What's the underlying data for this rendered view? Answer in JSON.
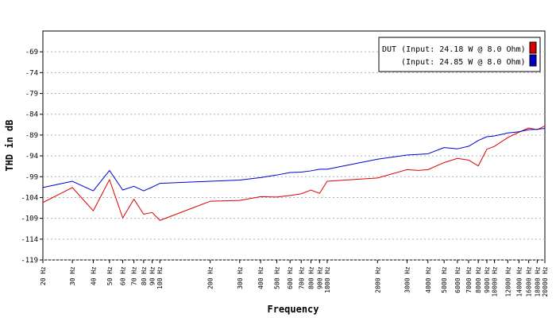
{
  "chart_data": {
    "type": "line",
    "title": "",
    "xlabel": "Frequency",
    "ylabel": "THD in dB",
    "x_scale": "log",
    "xlim": [
      20,
      20000
    ],
    "ylim": [
      -119,
      -64
    ],
    "y_ticks": [
      -69,
      -74,
      -79,
      -84,
      -89,
      -94,
      -99,
      -104,
      -109,
      -114,
      -119
    ],
    "x_ticks": [
      {
        "value": 20,
        "label": "20 Hz"
      },
      {
        "value": 30,
        "label": "30 Hz"
      },
      {
        "value": 40,
        "label": "40 Hz"
      },
      {
        "value": 50,
        "label": "50 Hz"
      },
      {
        "value": 60,
        "label": "60 Hz"
      },
      {
        "value": 70,
        "label": "70 Hz"
      },
      {
        "value": 80,
        "label": "80 Hz"
      },
      {
        "value": 90,
        "label": "90 Hz"
      },
      {
        "value": 100,
        "label": "100 Hz"
      },
      {
        "value": 200,
        "label": "200 Hz"
      },
      {
        "value": 300,
        "label": "300 Hz"
      },
      {
        "value": 400,
        "label": "400 Hz"
      },
      {
        "value": 500,
        "label": "500 Hz"
      },
      {
        "value": 600,
        "label": "600 Hz"
      },
      {
        "value": 700,
        "label": "700 Hz"
      },
      {
        "value": 800,
        "label": "800 Hz"
      },
      {
        "value": 900,
        "label": "900 Hz"
      },
      {
        "value": 1000,
        "label": "1000 Hz"
      },
      {
        "value": 2000,
        "label": "2000 Hz"
      },
      {
        "value": 3000,
        "label": "3000 Hz"
      },
      {
        "value": 4000,
        "label": "4000 Hz"
      },
      {
        "value": 5000,
        "label": "5000 Hz"
      },
      {
        "value": 6000,
        "label": "6000 Hz"
      },
      {
        "value": 7000,
        "label": "7000 Hz"
      },
      {
        "value": 8000,
        "label": "8000 Hz"
      },
      {
        "value": 9000,
        "label": "9000 Hz"
      },
      {
        "value": 10000,
        "label": "10000 Hz"
      },
      {
        "value": 12000,
        "label": "12000 Hz"
      },
      {
        "value": 14000,
        "label": "14000 Hz"
      },
      {
        "value": 16000,
        "label": "16000 Hz"
      },
      {
        "value": 18000,
        "label": "18000 Hz"
      },
      {
        "value": 20000,
        "label": "20000 Hz"
      }
    ],
    "grid": true,
    "legend_position": "top-right",
    "series": [
      {
        "name": "DUT (Input: 24.18 W @ 8.0 Ohm)",
        "color": "#dd0000",
        "points": [
          [
            20,
            -105.2
          ],
          [
            30,
            -101.6
          ],
          [
            40,
            -107.2
          ],
          [
            50,
            -99.7
          ],
          [
            60,
            -108.9
          ],
          [
            70,
            -104.4
          ],
          [
            80,
            -108.0
          ],
          [
            90,
            -107.6
          ],
          [
            100,
            -109.5
          ],
          [
            200,
            -104.9
          ],
          [
            300,
            -104.7
          ],
          [
            400,
            -103.8
          ],
          [
            500,
            -103.9
          ],
          [
            600,
            -103.5
          ],
          [
            700,
            -103.1
          ],
          [
            800,
            -102.2
          ],
          [
            900,
            -103.0
          ],
          [
            1000,
            -100.1
          ],
          [
            2000,
            -99.3
          ],
          [
            3000,
            -97.3
          ],
          [
            3500,
            -97.5
          ],
          [
            4000,
            -97.3
          ],
          [
            5000,
            -95.6
          ],
          [
            6000,
            -94.6
          ],
          [
            7000,
            -95.0
          ],
          [
            8000,
            -96.4
          ],
          [
            9000,
            -92.4
          ],
          [
            10000,
            -91.7
          ],
          [
            12000,
            -89.6
          ],
          [
            14000,
            -88.3
          ],
          [
            16000,
            -87.3
          ],
          [
            18000,
            -87.7
          ],
          [
            20000,
            -86.8
          ]
        ]
      },
      {
        "name": "(Input: 24.85 W @ 8.0 Ohm)",
        "color": "#0000cc",
        "points": [
          [
            20,
            -101.6
          ],
          [
            30,
            -100.1
          ],
          [
            40,
            -102.4
          ],
          [
            50,
            -97.5
          ],
          [
            60,
            -102.2
          ],
          [
            70,
            -101.3
          ],
          [
            80,
            -102.4
          ],
          [
            90,
            -101.5
          ],
          [
            100,
            -100.6
          ],
          [
            200,
            -100.1
          ],
          [
            300,
            -99.8
          ],
          [
            400,
            -99.2
          ],
          [
            500,
            -98.6
          ],
          [
            600,
            -98.0
          ],
          [
            700,
            -97.9
          ],
          [
            800,
            -97.6
          ],
          [
            900,
            -97.2
          ],
          [
            1000,
            -97.2
          ],
          [
            2000,
            -94.8
          ],
          [
            3000,
            -93.8
          ],
          [
            4000,
            -93.5
          ],
          [
            5000,
            -92.0
          ],
          [
            6000,
            -92.3
          ],
          [
            7000,
            -91.7
          ],
          [
            8000,
            -90.3
          ],
          [
            9000,
            -89.4
          ],
          [
            10000,
            -89.2
          ],
          [
            12000,
            -88.5
          ],
          [
            14000,
            -88.2
          ],
          [
            16000,
            -87.7
          ],
          [
            18000,
            -87.6
          ],
          [
            20000,
            -87.4
          ]
        ]
      }
    ]
  }
}
